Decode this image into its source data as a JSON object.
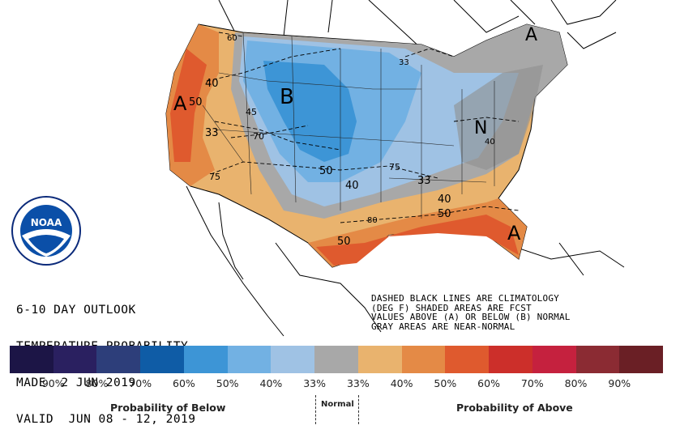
{
  "map_letters": {
    "below": "B",
    "above_west": "A",
    "above_southeast": "A",
    "above_northeast": "A",
    "normal_northeast": "N"
  },
  "contour_labels": [
    "60",
    "40",
    "50",
    "33",
    "70",
    "45",
    "75",
    "50",
    "40",
    "75",
    "33",
    "80",
    "40",
    "50",
    "50",
    "40",
    "33"
  ],
  "title_lines": [
    "6-10 DAY OUTLOOK",
    "TEMPERATURE PROBABILITY",
    "MADE  2 JUN 2019",
    "VALID  JUN 08 - 12, 2019"
  ],
  "note_lines": [
    "DASHED BLACK LINES ARE CLIMATOLOGY",
    "(DEG F) SHADED AREAS ARE FCST",
    "VALUES ABOVE (A) OR BELOW (B) NORMAL",
    "GRAY AREAS ARE NEAR-NORMAL"
  ],
  "logo_text": "NOAA",
  "legend": {
    "colors": [
      "#1c1546",
      "#2a2060",
      "#2d3e7a",
      "#0f5ca6",
      "#3d95d6",
      "#72b1e3",
      "#9fc2e4",
      "#a8a8a8",
      "#e9b36e",
      "#e48a46",
      "#df5a2e",
      "#cc2f2a",
      "#c5213e",
      "#8b2b33",
      "#6a1f25"
    ],
    "ticks": [
      "90%",
      "80%",
      "70%",
      "60%",
      "50%",
      "40%",
      "33%",
      "33%",
      "40%",
      "50%",
      "60%",
      "70%",
      "80%",
      "90%"
    ],
    "below_label": "Probability of Below",
    "normal_label": "Normal",
    "above_label": "Probability of Above"
  }
}
